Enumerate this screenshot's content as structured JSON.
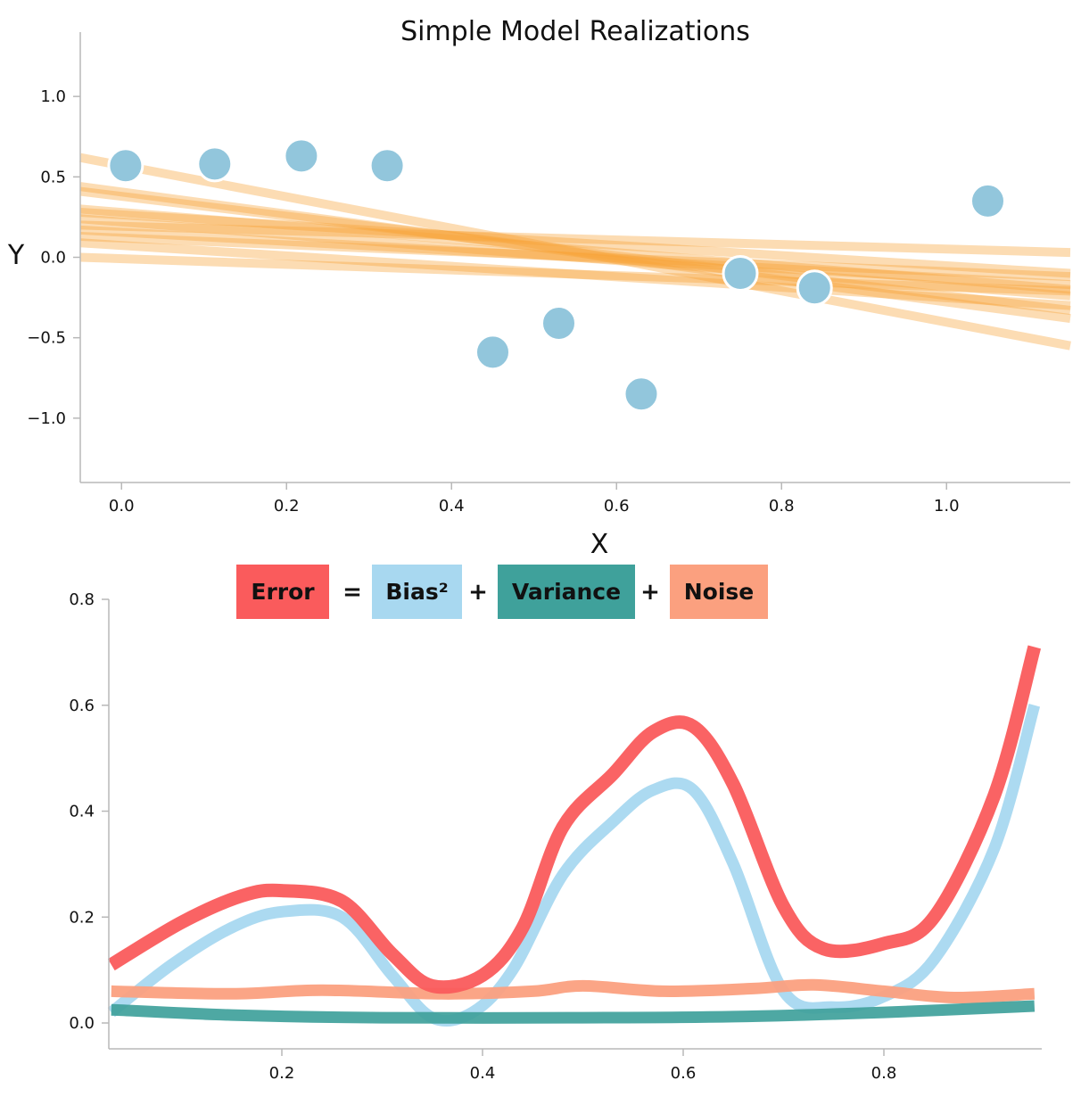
{
  "chart_data": [
    {
      "type": "line",
      "title": "Simple Model Realizations",
      "xlabel": "X",
      "ylabel": "Y",
      "xlim": [
        -0.05,
        1.15
      ],
      "ylim": [
        -1.4,
        1.4
      ],
      "xticks": [
        "0.0",
        "0.2",
        "0.4",
        "0.6",
        "0.8",
        "1.0"
      ],
      "yticks": [
        "1.0",
        "0.5",
        "0.0",
        "−0.5",
        "−1.0"
      ],
      "line_color": "#f8a336",
      "point_color": "#92c6dc",
      "points": [
        {
          "x": 0.005,
          "y": 0.57
        },
        {
          "x": 0.113,
          "y": 0.58
        },
        {
          "x": 0.218,
          "y": 0.63
        },
        {
          "x": 0.322,
          "y": 0.57
        },
        {
          "x": 0.45,
          "y": -0.59
        },
        {
          "x": 0.53,
          "y": -0.41
        },
        {
          "x": 0.63,
          "y": -0.85
        },
        {
          "x": 0.75,
          "y": -0.1
        },
        {
          "x": 0.84,
          "y": -0.19
        },
        {
          "x": 1.05,
          "y": 0.35
        }
      ],
      "series": [
        {
          "values": [
            [
              -0.05,
              0.62
            ],
            [
              1.15,
              -0.55
            ]
          ]
        },
        {
          "values": [
            [
              -0.05,
              0.44
            ],
            [
              1.15,
              -0.38
            ]
          ]
        },
        {
          "values": [
            [
              -0.05,
              0.41
            ],
            [
              1.15,
              -0.33
            ]
          ]
        },
        {
          "values": [
            [
              -0.05,
              0.3
            ],
            [
              1.15,
              -0.2
            ]
          ]
        },
        {
          "values": [
            [
              -0.05,
              0.28
            ],
            [
              1.15,
              -0.1
            ]
          ]
        },
        {
          "values": [
            [
              -0.05,
              0.24
            ],
            [
              1.15,
              -0.24
            ]
          ]
        },
        {
          "values": [
            [
              -0.05,
              0.2
            ],
            [
              1.15,
              0.03
            ]
          ]
        },
        {
          "values": [
            [
              -0.05,
              0.17
            ],
            [
              1.15,
              -0.17
            ]
          ]
        },
        {
          "values": [
            [
              -0.05,
              0.13
            ],
            [
              1.15,
              -0.12
            ]
          ]
        },
        {
          "values": [
            [
              -0.05,
              0.09
            ],
            [
              1.15,
              -0.3
            ]
          ]
        },
        {
          "values": [
            [
              -0.05,
              0.0
            ],
            [
              1.15,
              -0.21
            ]
          ]
        }
      ]
    },
    {
      "type": "line",
      "title": "",
      "xlabel": "",
      "ylabel": "",
      "xlim": [
        0.03,
        0.95
      ],
      "ylim": [
        -0.05,
        0.8
      ],
      "xticks": [
        "0.2",
        "0.4",
        "0.6",
        "0.8"
      ],
      "yticks": [
        "0.8",
        "0.6",
        "0.4",
        "0.2",
        "0.0"
      ],
      "legend": {
        "items": [
          {
            "label": "Error",
            "color": "#fa5b5c"
          },
          {
            "op": "="
          },
          {
            "label": "Bias²",
            "color": "#a8d8f0"
          },
          {
            "op": "+"
          },
          {
            "label": "Variance",
            "color": "#3fa19b"
          },
          {
            "op": "+"
          },
          {
            "label": "Noise",
            "color": "#fba07f"
          }
        ]
      },
      "series": [
        {
          "name": "Error",
          "color": "#fa5b5c",
          "values": [
            [
              0.03,
              0.11
            ],
            [
              0.1,
              0.19
            ],
            [
              0.16,
              0.24
            ],
            [
              0.2,
              0.25
            ],
            [
              0.26,
              0.23
            ],
            [
              0.31,
              0.13
            ],
            [
              0.35,
              0.07
            ],
            [
              0.4,
              0.09
            ],
            [
              0.44,
              0.18
            ],
            [
              0.48,
              0.37
            ],
            [
              0.53,
              0.47
            ],
            [
              0.57,
              0.55
            ],
            [
              0.61,
              0.56
            ],
            [
              0.65,
              0.45
            ],
            [
              0.7,
              0.22
            ],
            [
              0.74,
              0.14
            ],
            [
              0.8,
              0.15
            ],
            [
              0.85,
              0.2
            ],
            [
              0.91,
              0.43
            ],
            [
              0.95,
              0.71
            ]
          ]
        },
        {
          "name": "Bias²",
          "color": "#a8d8f0",
          "values": [
            [
              0.03,
              0.02
            ],
            [
              0.09,
              0.11
            ],
            [
              0.15,
              0.18
            ],
            [
              0.2,
              0.21
            ],
            [
              0.26,
              0.2
            ],
            [
              0.31,
              0.09
            ],
            [
              0.35,
              0.01
            ],
            [
              0.39,
              0.02
            ],
            [
              0.43,
              0.1
            ],
            [
              0.48,
              0.28
            ],
            [
              0.53,
              0.38
            ],
            [
              0.57,
              0.44
            ],
            [
              0.61,
              0.44
            ],
            [
              0.65,
              0.3
            ],
            [
              0.7,
              0.06
            ],
            [
              0.75,
              0.03
            ],
            [
              0.8,
              0.05
            ],
            [
              0.85,
              0.12
            ],
            [
              0.91,
              0.33
            ],
            [
              0.95,
              0.6
            ]
          ]
        },
        {
          "name": "Variance",
          "color": "#3fa19b",
          "values": [
            [
              0.03,
              0.025
            ],
            [
              0.15,
              0.015
            ],
            [
              0.3,
              0.01
            ],
            [
              0.5,
              0.01
            ],
            [
              0.65,
              0.012
            ],
            [
              0.8,
              0.02
            ],
            [
              0.95,
              0.032
            ]
          ]
        },
        {
          "name": "Noise",
          "color": "#fba07f",
          "values": [
            [
              0.03,
              0.06
            ],
            [
              0.15,
              0.055
            ],
            [
              0.24,
              0.062
            ],
            [
              0.36,
              0.055
            ],
            [
              0.45,
              0.06
            ],
            [
              0.5,
              0.07
            ],
            [
              0.58,
              0.06
            ],
            [
              0.67,
              0.065
            ],
            [
              0.73,
              0.072
            ],
            [
              0.8,
              0.06
            ],
            [
              0.87,
              0.048
            ],
            [
              0.95,
              0.055
            ]
          ]
        }
      ]
    }
  ]
}
